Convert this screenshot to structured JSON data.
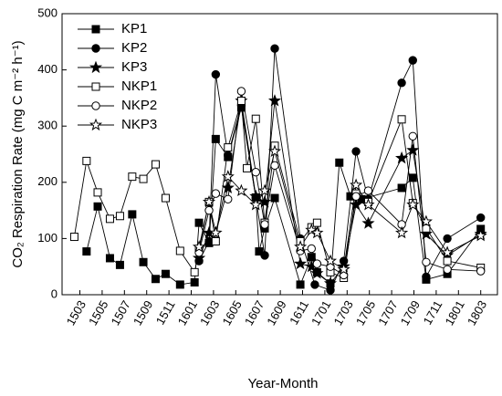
{
  "chart_data": {
    "type": "line",
    "x_label": "Year-Month",
    "y_label": "CO₂ Respiration Rate (mg C m⁻² h⁻¹)",
    "xlim": [
      -1.6,
      37.5
    ],
    "xticks": [
      {
        "value": 0,
        "label": "1503"
      },
      {
        "value": 2,
        "label": "1505"
      },
      {
        "value": 4,
        "label": "1507"
      },
      {
        "value": 6,
        "label": "1509"
      },
      {
        "value": 8,
        "label": "1511"
      },
      {
        "value": 10,
        "label": "1601"
      },
      {
        "value": 12,
        "label": "1603"
      },
      {
        "value": 14,
        "label": "1605"
      },
      {
        "value": 16,
        "label": "1607"
      },
      {
        "value": 18,
        "label": "1609"
      },
      {
        "value": 20,
        "label": "1611"
      },
      {
        "value": 22,
        "label": "1701"
      },
      {
        "value": 24,
        "label": "1703"
      },
      {
        "value": 26,
        "label": "1705"
      },
      {
        "value": 28,
        "label": "1707"
      },
      {
        "value": 30,
        "label": "1709"
      },
      {
        "value": 32,
        "label": "1711"
      },
      {
        "value": 34,
        "label": "1801"
      },
      {
        "value": 36,
        "label": "1803"
      }
    ],
    "ylim": [
      0,
      500
    ],
    "yticks": [
      0,
      100,
      200,
      300,
      400,
      500
    ],
    "legend": "upper-left",
    "series": [
      {
        "name": "KP1",
        "color": "#000000",
        "marker": "square",
        "filled": true,
        "x": [
          0.6,
          1.6,
          2.7,
          3.6,
          4.7,
          5.7,
          6.8,
          7.7,
          9.0,
          10.3,
          10.7,
          11.6,
          12.2,
          13.3,
          14.5,
          15.8,
          16.1,
          16.6,
          17.5,
          19.8,
          20.8,
          21.3,
          22.5,
          23.3,
          24.3,
          25.3,
          28.9,
          29.9,
          31.1,
          33.0,
          36.0
        ],
        "values": [
          77,
          157,
          65,
          53,
          143,
          58,
          28,
          37,
          18,
          22,
          128,
          92,
          277,
          245,
          333,
          173,
          77,
          118,
          172,
          18,
          67,
          40,
          20,
          235,
          175,
          170,
          190,
          208,
          27,
          37,
          117
        ]
      },
      {
        "name": "KP2",
        "color": "#000000",
        "marker": "circle",
        "filled": true,
        "x": [
          10.7,
          11.6,
          12.2,
          13.3,
          14.5,
          15.8,
          16.6,
          17.5,
          19.8,
          21.1,
          22.5,
          23.7,
          24.8,
          25.9,
          28.9,
          29.9,
          31.1,
          33.0,
          36.0
        ],
        "values": [
          60,
          95,
          392,
          248,
          337,
          172,
          70,
          438,
          100,
          18,
          8,
          60,
          255,
          170,
          377,
          417,
          32,
          100,
          137
        ]
      },
      {
        "name": "KP3",
        "color": "#000000",
        "marker": "star",
        "filled": true,
        "x": [
          10.7,
          11.6,
          12.2,
          13.3,
          14.5,
          15.8,
          16.6,
          17.5,
          19.8,
          20.8,
          21.3,
          22.5,
          23.7,
          24.8,
          25.9,
          28.9,
          29.9,
          31.1,
          33.0,
          36.0
        ],
        "values": [
          65,
          110,
          110,
          190,
          345,
          175,
          165,
          345,
          55,
          50,
          38,
          20,
          50,
          160,
          127,
          243,
          257,
          108,
          70,
          108
        ]
      },
      {
        "name": "NKP1",
        "color": "#000000",
        "marker": "square",
        "filled": false,
        "x": [
          -0.5,
          0.6,
          1.6,
          2.7,
          3.6,
          4.7,
          5.7,
          6.8,
          7.7,
          9.0,
          10.3,
          10.7,
          11.6,
          12.2,
          13.3,
          14.5,
          15.0,
          15.8,
          16.6,
          17.5,
          19.8,
          20.8,
          21.3,
          22.5,
          23.7,
          24.8,
          25.9,
          28.9,
          29.9,
          31.1,
          33.0,
          36.0
        ],
        "values": [
          103,
          238,
          182,
          135,
          140,
          210,
          206,
          232,
          172,
          78,
          40,
          80,
          165,
          95,
          262,
          345,
          225,
          313,
          128,
          265,
          95,
          120,
          128,
          40,
          30,
          180,
          165,
          312,
          163,
          118,
          60,
          48
        ]
      },
      {
        "name": "NKP2",
        "color": "#000000",
        "marker": "circle",
        "filled": false,
        "x": [
          10.7,
          11.6,
          12.2,
          13.3,
          14.5,
          15.8,
          16.6,
          17.5,
          19.8,
          20.8,
          21.3,
          22.5,
          23.7,
          24.8,
          25.9,
          28.9,
          29.9,
          31.1,
          33.0,
          36.0
        ],
        "values": [
          75,
          150,
          180,
          170,
          362,
          218,
          125,
          230,
          78,
          82,
          55,
          50,
          35,
          175,
          185,
          125,
          282,
          58,
          45,
          42
        ]
      },
      {
        "name": "NKP3",
        "color": "#000000",
        "marker": "star",
        "filled": false,
        "x": [
          10.7,
          11.6,
          12.2,
          13.3,
          14.5,
          15.8,
          16.6,
          17.5,
          19.8,
          20.8,
          21.3,
          22.5,
          23.7,
          24.8,
          25.9,
          28.9,
          29.9,
          31.1,
          33.0,
          36.0
        ],
        "values": [
          85,
          165,
          110,
          210,
          185,
          160,
          185,
          255,
          85,
          115,
          110,
          60,
          45,
          195,
          160,
          110,
          160,
          130,
          75,
          105
        ]
      }
    ]
  }
}
